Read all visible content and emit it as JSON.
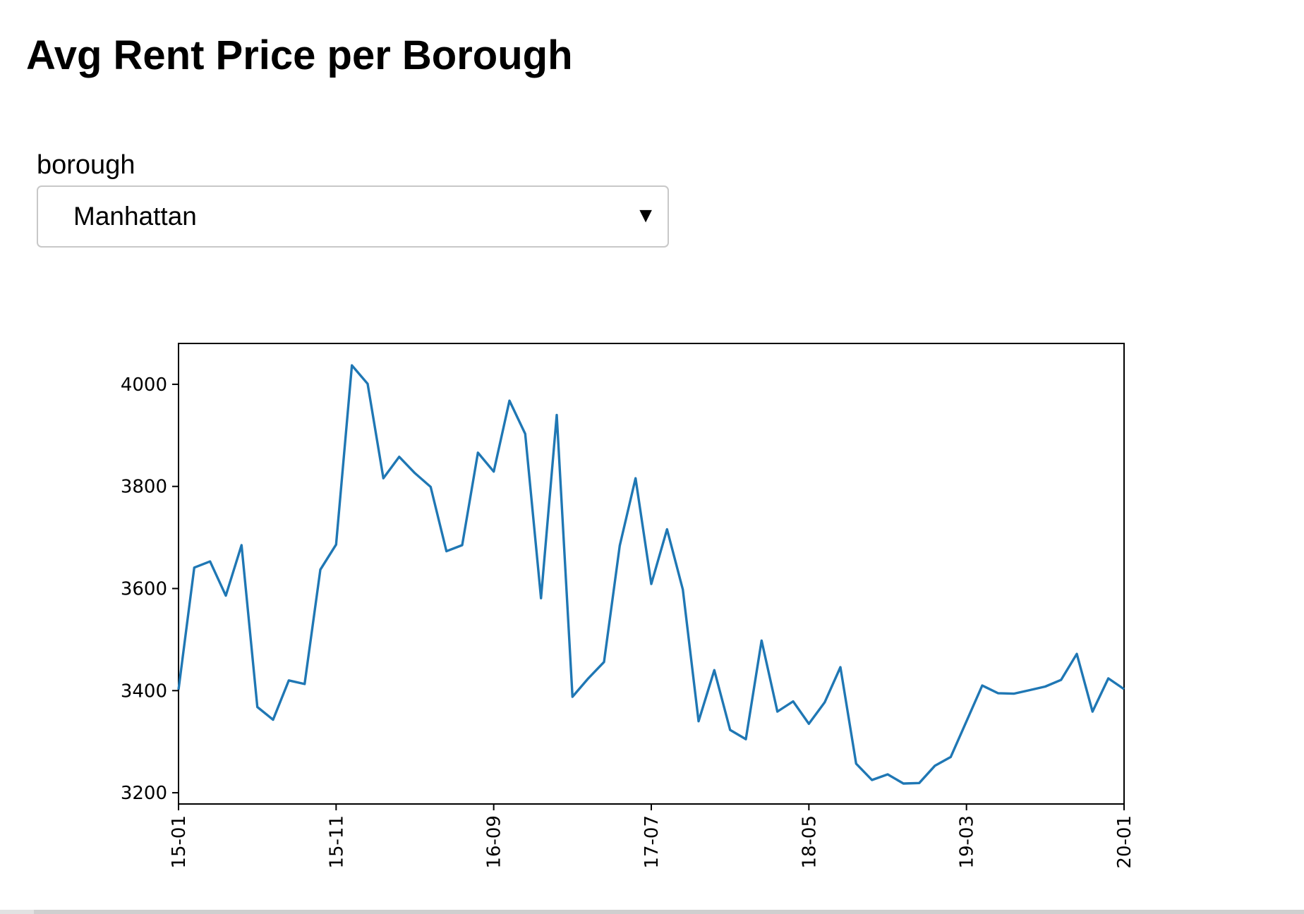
{
  "page": {
    "title": "Avg Rent Price per Borough"
  },
  "dropdown": {
    "label": "borough",
    "selected": "Manhattan",
    "caret_icon": "triangle-down-icon"
  },
  "chart_data": {
    "type": "line",
    "title": "",
    "xlabel": "",
    "ylabel": "",
    "grid": false,
    "legend": "none",
    "color": "#1f77b4",
    "xlim": [
      "15-01",
      "20-01"
    ],
    "ylim": [
      3178,
      4080
    ],
    "x_ticks": [
      "15-01",
      "15-11",
      "16-09",
      "17-07",
      "18-05",
      "19-03",
      "20-01"
    ],
    "y_ticks": [
      3200,
      3400,
      3600,
      3800,
      4000
    ],
    "x": [
      "15-01",
      "15-02",
      "15-03",
      "15-04",
      "15-05",
      "15-06",
      "15-07",
      "15-08",
      "15-09",
      "15-10",
      "15-11",
      "15-12",
      "16-01",
      "16-02",
      "16-03",
      "16-04",
      "16-05",
      "16-06",
      "16-07",
      "16-08",
      "16-09",
      "16-10",
      "16-11",
      "16-12",
      "17-01",
      "17-02",
      "17-03",
      "17-04",
      "17-05",
      "17-06",
      "17-07",
      "17-08",
      "17-09",
      "17-10",
      "17-11",
      "17-12",
      "18-01",
      "18-02",
      "18-03",
      "18-04",
      "18-05",
      "18-06",
      "18-07",
      "18-08",
      "18-09",
      "18-10",
      "18-11",
      "18-12",
      "19-01",
      "19-02",
      "19-03",
      "19-04",
      "19-05",
      "19-06",
      "19-07",
      "19-08",
      "19-09",
      "19-10",
      "19-11",
      "19-12",
      "20-01"
    ],
    "series": [
      {
        "values": [
          3402,
          3641,
          3653,
          3586,
          3685,
          3368,
          3343,
          3420,
          3413,
          3637,
          3686,
          4037,
          4001,
          3816,
          3858,
          3826,
          3799,
          3673,
          3685,
          3866,
          3829,
          3968,
          3903,
          3581,
          3940,
          3388,
          3424,
          3456,
          3684,
          3816,
          3609,
          3716,
          3598,
          3340,
          3440,
          3323,
          3305,
          3498,
          3359,
          3379,
          3335,
          3377,
          3446,
          3257,
          3225,
          3236,
          3218,
          3219,
          3253,
          3270,
          3340,
          3410,
          3395,
          3394,
          3401,
          3408,
          3421,
          3472,
          3359,
          3424,
          3403
        ]
      }
    ]
  }
}
